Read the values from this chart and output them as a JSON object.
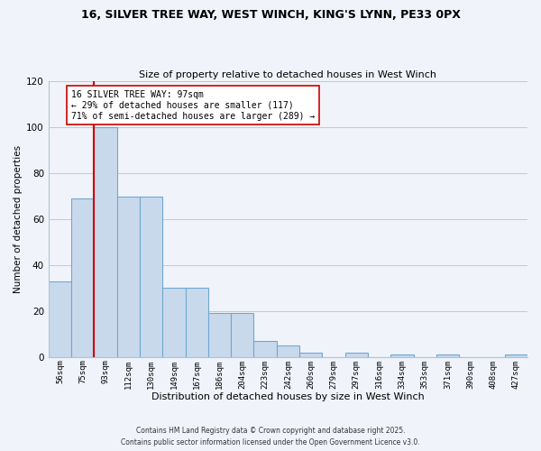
{
  "title_line1": "16, SILVER TREE WAY, WEST WINCH, KING'S LYNN, PE33 0PX",
  "title_line2": "Size of property relative to detached houses in West Winch",
  "xlabel": "Distribution of detached houses by size in West Winch",
  "ylabel": "Number of detached properties",
  "bar_labels": [
    "56sqm",
    "75sqm",
    "93sqm",
    "112sqm",
    "130sqm",
    "149sqm",
    "167sqm",
    "186sqm",
    "204sqm",
    "223sqm",
    "242sqm",
    "260sqm",
    "279sqm",
    "297sqm",
    "316sqm",
    "334sqm",
    "353sqm",
    "371sqm",
    "390sqm",
    "408sqm",
    "427sqm"
  ],
  "bar_values": [
    33,
    69,
    100,
    70,
    70,
    30,
    30,
    19,
    19,
    7,
    5,
    2,
    0,
    2,
    0,
    1,
    0,
    1,
    0,
    0,
    1
  ],
  "bar_color": "#c9d9ec",
  "bar_edge_color": "#6fa8d0",
  "ylim": [
    0,
    120
  ],
  "yticks": [
    0,
    20,
    40,
    60,
    80,
    100,
    120
  ],
  "vline_index": 2,
  "vline_color": "#cc0000",
  "annotation_title": "16 SILVER TREE WAY: 97sqm",
  "annotation_line1": "← 29% of detached houses are smaller (117)",
  "annotation_line2": "71% of semi-detached houses are larger (289) →",
  "annotation_box_color": "#ffffff",
  "annotation_box_edge": "#cc0000",
  "footnote1": "Contains HM Land Registry data © Crown copyright and database right 2025.",
  "footnote2": "Contains public sector information licensed under the Open Government Licence v3.0.",
  "background_color": "#f0f4fa",
  "grid_color": "#b0c4d8"
}
